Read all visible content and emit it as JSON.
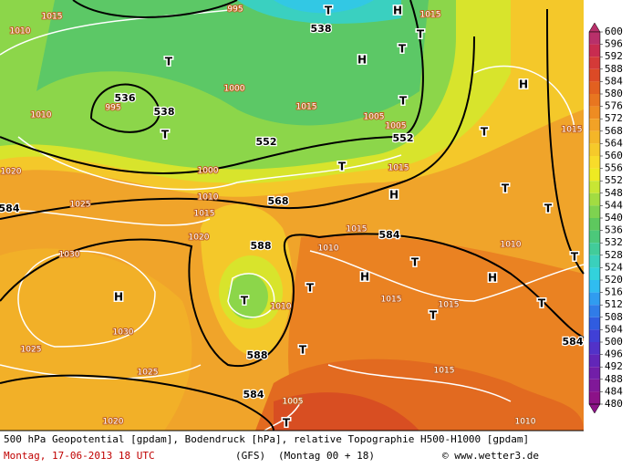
{
  "map_labels": [
    "1015",
    "1010",
    "995",
    "T",
    "H",
    "1015",
    "538",
    "T",
    "H",
    "T",
    "T",
    "H",
    "1000",
    "536",
    "995",
    "538",
    "T",
    "1010",
    "1015",
    "1005",
    "1005",
    "552",
    "552",
    "T",
    "T",
    "1015",
    "1020",
    "1000",
    "1010",
    "T",
    "1015",
    "568",
    "H",
    "T",
    "T",
    "584",
    "1025",
    "1015",
    "1020",
    "588",
    "1015",
    "584",
    "1010",
    "1010",
    "T",
    "1030",
    "H",
    "T",
    "1010",
    "T",
    "H",
    "T",
    "H",
    "1015",
    "1015",
    "T",
    "T",
    "1030",
    "588",
    "T",
    "584",
    "1025",
    "1025",
    "1015",
    "584",
    "1005",
    "1020",
    "T",
    "1010"
  ],
  "colorbar": {
    "ticks": [
      600,
      596,
      592,
      588,
      584,
      580,
      576,
      572,
      568,
      564,
      560,
      556,
      552,
      548,
      544,
      540,
      536,
      532,
      528,
      524,
      520,
      516,
      512,
      508,
      504,
      500,
      496,
      492,
      488,
      484,
      480
    ],
    "colors": [
      "#b8306a",
      "#c82c50",
      "#d43a38",
      "#dc4a26",
      "#e26020",
      "#e87620",
      "#ee8c22",
      "#f2a226",
      "#f4b628",
      "#f6ca2a",
      "#f8dc2a",
      "#eeea22",
      "#c8e634",
      "#a2dc42",
      "#7ed250",
      "#5ec85e",
      "#4cc87a",
      "#42cc9a",
      "#3ad0bc",
      "#32d2dc",
      "#30bcf0",
      "#309cf0",
      "#307ce8",
      "#305ce0",
      "#4040d6",
      "#5232c8",
      "#6226b8",
      "#721ea8",
      "#801898",
      "#8c1288"
    ]
  },
  "footer": {
    "line1": "500 hPa Geopotential [gpdam], Bodendruck [hPa], relative Topographie H500-H1000 [gpdam]",
    "date": "Montag, 17-06-2013  18 UTC",
    "model": "(GFS)",
    "run": "(Montag 00 + 18)",
    "site": "© www.wetter3.de"
  }
}
